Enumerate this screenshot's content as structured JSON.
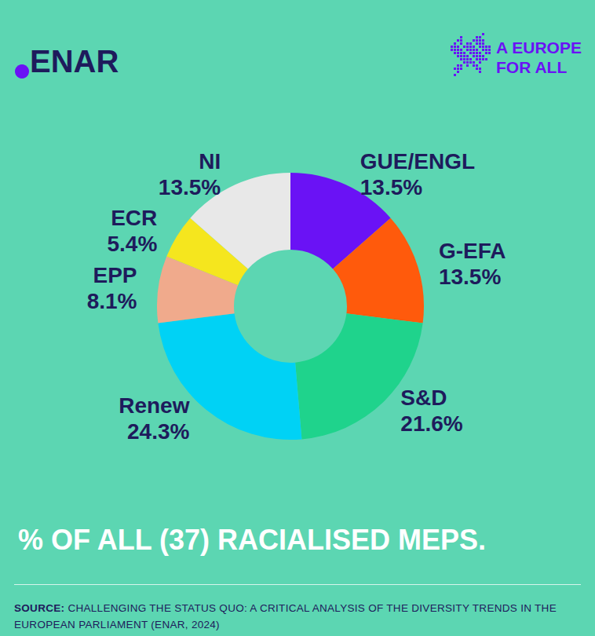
{
  "header": {
    "logo": "ENAR",
    "tagline": [
      "A EUROPE",
      "FOR ALL"
    ]
  },
  "chart_data": {
    "type": "donut",
    "title": "% OF ALL (37) RACIALISED MEPS.",
    "categories": [
      "GUE/ENGL",
      "G-EFA",
      "S&D",
      "Renew",
      "EPP",
      "ECR",
      "NI"
    ],
    "values": [
      13.5,
      13.5,
      21.6,
      24.3,
      8.1,
      5.4,
      13.5
    ],
    "value_labels": [
      "13.5%",
      "13.5%",
      "21.6%",
      "24.3%",
      "8.1%",
      "5.4%",
      "13.5%"
    ],
    "colors": [
      "#6a12f5",
      "#ff5a0c",
      "#1fd38c",
      "#00d2f5",
      "#f0aa8c",
      "#f5e61e",
      "#e8e8e8"
    ],
    "data_labels": true
  },
  "source": {
    "label": "SOURCE:",
    "text": "CHALLENGING THE STATUS QUO: A CRITICAL ANALYSIS OF THE DIVERSITY TRENDS IN THE EUROPEAN PARLIAMENT (ENAR, 2024)"
  }
}
